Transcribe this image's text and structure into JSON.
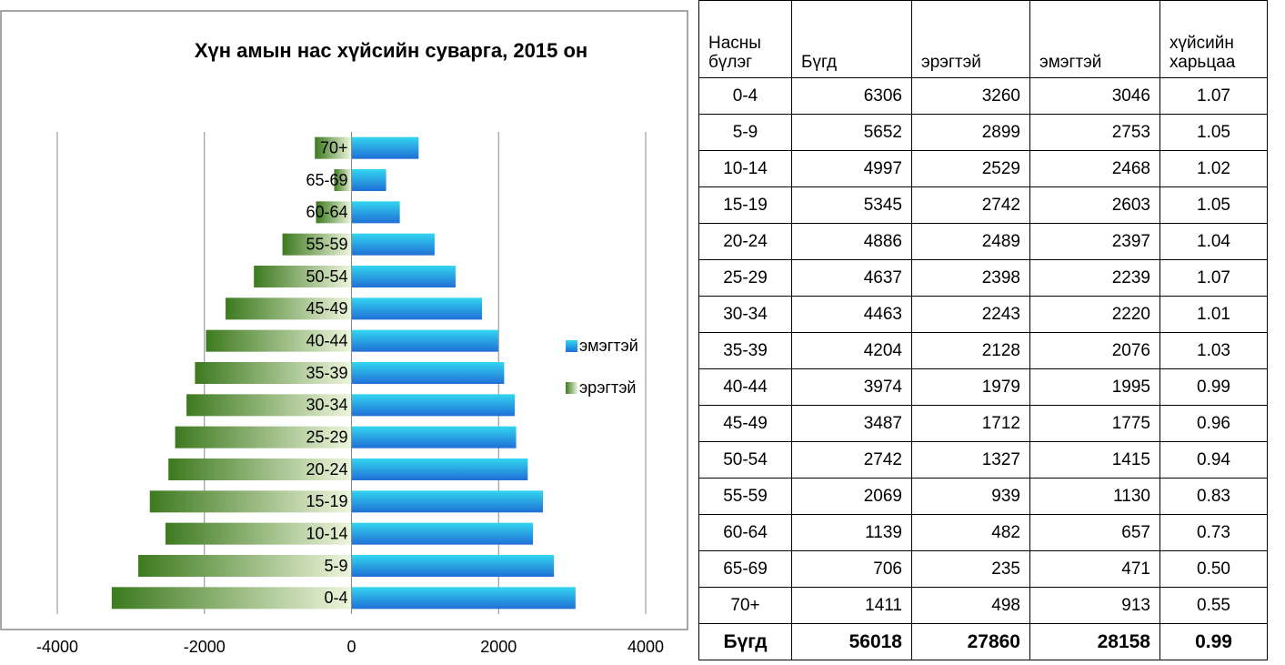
{
  "chart_data": {
    "type": "bar",
    "orientation": "horizontal",
    "title": "Хүн амын нас хүйсийн суварга, 2015 он",
    "categories": [
      "0-4",
      "5-9",
      "10-14",
      "15-19",
      "20-24",
      "25-29",
      "30-34",
      "35-39",
      "40-44",
      "45-49",
      "50-54",
      "55-59",
      "60-64",
      "65-69",
      "70+"
    ],
    "series": [
      {
        "name": "эмэгтэй",
        "color": "#1f6fd6",
        "values": [
          3046,
          2753,
          2468,
          2603,
          2397,
          2239,
          2220,
          2076,
          1995,
          1775,
          1415,
          1130,
          657,
          471,
          913
        ]
      },
      {
        "name": "эрэгтэй",
        "color": "#3d7a1f",
        "values": [
          -3260,
          -2899,
          -2529,
          -2742,
          -2489,
          -2398,
          -2243,
          -2128,
          -1979,
          -1712,
          -1327,
          -939,
          -482,
          -235,
          -498
        ]
      }
    ],
    "xlim": [
      -4000,
      4000
    ],
    "xticks": [
      -4000,
      -2000,
      0,
      2000,
      4000
    ],
    "grid": true,
    "legend": "right"
  },
  "table": {
    "header": [
      "Насны бүлэг",
      "Бүгд",
      "эрэгтэй",
      "эмэгтэй",
      "хүйсийн харьцаа"
    ],
    "rows": [
      [
        "0-4",
        "6306",
        "3260",
        "3046",
        "1.07"
      ],
      [
        "5-9",
        "5652",
        "2899",
        "2753",
        "1.05"
      ],
      [
        "10-14",
        "4997",
        "2529",
        "2468",
        "1.02"
      ],
      [
        "15-19",
        "5345",
        "2742",
        "2603",
        "1.05"
      ],
      [
        "20-24",
        "4886",
        "2489",
        "2397",
        "1.04"
      ],
      [
        "25-29",
        "4637",
        "2398",
        "2239",
        "1.07"
      ],
      [
        "30-34",
        "4463",
        "2243",
        "2220",
        "1.01"
      ],
      [
        "35-39",
        "4204",
        "2128",
        "2076",
        "1.03"
      ],
      [
        "40-44",
        "3974",
        "1979",
        "1995",
        "0.99"
      ],
      [
        "45-49",
        "3487",
        "1712",
        "1775",
        "0.96"
      ],
      [
        "50-54",
        "2742",
        "1327",
        "1415",
        "0.94"
      ],
      [
        "55-59",
        "2069",
        "939",
        "1130",
        "0.83"
      ],
      [
        "60-64",
        "1139",
        "482",
        "657",
        "0.73"
      ],
      [
        "65-69",
        "706",
        "235",
        "471",
        "0.50"
      ],
      [
        "70+",
        "1411",
        "498",
        "913",
        "0.55"
      ]
    ],
    "total": [
      "Бүгд",
      "56018",
      "27860",
      "28158",
      "0.99"
    ]
  }
}
